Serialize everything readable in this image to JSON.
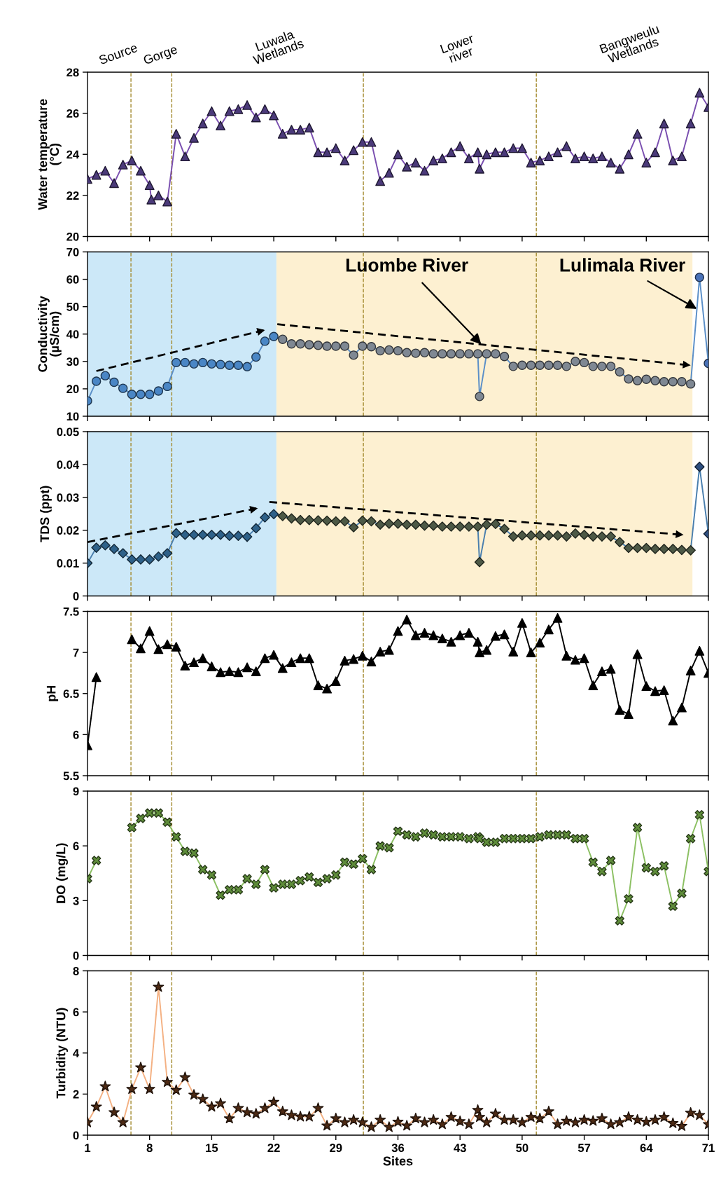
{
  "chart_data": [
    {
      "type": "line",
      "ylabel": "Water temperature\n(°C)",
      "series": [
        {
          "color": "#7a4fb0",
          "marker": "triangle",
          "x": [
            1,
            2,
            3,
            4,
            5,
            6,
            7,
            8,
            8.2,
            9,
            10,
            11,
            12,
            13,
            14,
            15,
            16,
            17,
            18,
            19,
            20,
            21,
            22,
            23,
            24,
            25,
            26,
            27,
            28,
            29,
            30,
            31,
            32,
            33,
            34,
            35,
            36,
            37,
            38,
            39,
            40,
            41,
            42,
            43,
            44,
            45,
            45.2,
            46,
            47,
            48,
            49,
            50,
            51,
            52,
            53,
            54,
            55,
            56,
            57,
            58,
            59,
            60,
            61,
            62,
            63,
            64,
            65,
            66,
            67,
            68,
            69,
            70,
            71
          ],
          "colors": [
            "#4b3a7a",
            "#4b3a7a",
            "#4b3a7a",
            "#4b3a7a",
            "#4b3a7a",
            "#4b3a7a",
            "#4b3a7a",
            "#4b3a7a",
            "#4b3a7a",
            "#4b3a7a",
            "#4b3a7a",
            "#4b3a7a",
            "#4b3a7a",
            "#4b3a7a",
            "#4b3a7a",
            "#4b3a7a",
            "#4b3a7a",
            "#4b3a7a",
            "#4b3a7a",
            "#4b3a7a",
            "#4b3a7a",
            "#4b3a7a",
            "#4b3a7a",
            "#4b3a7a",
            "#4b3a7a",
            "#4b3a7a",
            "#4b3a7a",
            "#4b3a7a",
            "#4b3a7a",
            "#4b3a7a",
            "#4b3a7a",
            "#4b3a7a",
            "#4b3a7a",
            "#4b3a7a",
            "#4b3a7a",
            "#4b3a7a",
            "#4b3a7a",
            "#4b3a7a",
            "#4b3a7a",
            "#4b3a7a",
            "#4b3a7a",
            "#4b3a7a",
            "#4b3a7a",
            "#4b3a7a",
            "#4b3a7a",
            "#4b3a7a",
            "#4b3a7a",
            "#4b3a7a",
            "#4b3a7a",
            "#4b3a7a",
            "#4b3a7a",
            "#4b3a7a",
            "#4b3a7a",
            "#4b3a7a",
            "#4b3a7a",
            "#4b3a7a",
            "#4b3a7a",
            "#4b3a7a",
            "#4b3a7a",
            "#4b3a7a",
            "#4b3a7a",
            "#4b3a7a",
            "#4b3a7a",
            "#4b3a7a",
            "#4b3a7a",
            "#4b3a7a",
            "#4b3a7a",
            "#4b3a7a",
            "#4b3a7a",
            "#4b3a7a",
            "#4b3a7a",
            "#4b3a7a",
            "#4b3a7a"
          ],
          "values": [
            22.8,
            23.0,
            23.2,
            22.6,
            23.5,
            23.7,
            23.2,
            22.5,
            21.8,
            22.0,
            21.7,
            25.0,
            23.9,
            24.8,
            25.5,
            26.1,
            25.4,
            26.1,
            26.2,
            26.4,
            25.8,
            26.2,
            25.9,
            25.0,
            25.2,
            25.2,
            25.3,
            24.1,
            24.1,
            24.3,
            23.7,
            24.2,
            24.6,
            24.6,
            22.7,
            23.1,
            24.0,
            23.4,
            23.6,
            23.2,
            23.7,
            23.8,
            24.1,
            24.4,
            23.8,
            24.1,
            23.3,
            24.0,
            24.1,
            24.1,
            24.3,
            24.3,
            23.6,
            23.7,
            23.9,
            24.1,
            24.4,
            23.8,
            23.9,
            23.8,
            23.9,
            23.6,
            23.3,
            24.0,
            25.0,
            23.6,
            24.1,
            25.5,
            23.7,
            23.9,
            25.5,
            27.0,
            26.3
          ]
        }
      ],
      "xlim": [
        1,
        71
      ],
      "xticks": [
        1,
        8,
        15,
        22,
        29,
        36,
        43,
        50,
        57,
        64,
        71
      ],
      "ylim": [
        20,
        28
      ],
      "yticks": [
        20,
        22,
        24,
        26,
        28
      ],
      "tick_labels": "y",
      "ref_lines": [
        {
          "axis": "x",
          "value": 5.9,
          "color": "#a38a2e",
          "line_style": "dashed"
        },
        {
          "axis": "x",
          "value": 10.5,
          "color": "#a38a2e",
          "line_style": "dashed"
        },
        {
          "axis": "x",
          "value": 32.1,
          "color": "#a38a2e",
          "line_style": "dashed"
        },
        {
          "axis": "x",
          "value": 51.6,
          "color": "#a38a2e",
          "line_style": "dashed"
        }
      ],
      "annotations": [
        "Source",
        "Gorge",
        "Luwala\nWetlands",
        "Lower\nriver",
        "Bangweulu\nWetlands"
      ]
    },
    {
      "type": "line",
      "ylabel": "Conductivity\n(µS/cm)",
      "series": [
        {
          "color": "#5b8fc8",
          "marker": "circle",
          "x": [
            1,
            2,
            3,
            4,
            5,
            6,
            7,
            8,
            9,
            10,
            11,
            12,
            13,
            14,
            15,
            16,
            17,
            18,
            19,
            20,
            21,
            22,
            23,
            24,
            25,
            26,
            27,
            28,
            29,
            30,
            31,
            32,
            33,
            34,
            35,
            36,
            37,
            38,
            39,
            40,
            41,
            42,
            43,
            44,
            45,
            45.2,
            46,
            47,
            48,
            49,
            50,
            51,
            52,
            53,
            54,
            55,
            56,
            57,
            58,
            59,
            60,
            61,
            62,
            63,
            64,
            65,
            66,
            67,
            68,
            69,
            70,
            71
          ],
          "colors": [
            "#4a86c5",
            "#4a86c5",
            "#4a86c5",
            "#4a86c5",
            "#4a86c5",
            "#4a86c5",
            "#4a86c5",
            "#4a86c5",
            "#4a86c5",
            "#4a86c5",
            "#4a86c5",
            "#4a86c5",
            "#4a86c5",
            "#4a86c5",
            "#4a86c5",
            "#4a86c5",
            "#4a86c5",
            "#4a86c5",
            "#4a86c5",
            "#4a86c5",
            "#4a86c5",
            "#4a86c5",
            "#7f8893",
            "#7f8893",
            "#7f8893",
            "#7f8893",
            "#7f8893",
            "#7f8893",
            "#7f8893",
            "#7f8893",
            "#7f8893",
            "#7f8893",
            "#7f8893",
            "#7f8893",
            "#7f8893",
            "#7f8893",
            "#7f8893",
            "#7f8893",
            "#7f8893",
            "#7f8893",
            "#7f8893",
            "#7f8893",
            "#7f8893",
            "#7f8893",
            "#7f8893",
            "#7f8893",
            "#7f8893",
            "#7f8893",
            "#7f8893",
            "#7f8893",
            "#7f8893",
            "#7f8893",
            "#7f8893",
            "#7f8893",
            "#7f8893",
            "#7f8893",
            "#7f8893",
            "#7f8893",
            "#7f8893",
            "#7f8893",
            "#7f8893",
            "#7f8893",
            "#7f8893",
            "#7f8893",
            "#7f8893",
            "#7f8893",
            "#7f8893",
            "#7f8893",
            "#7f8893",
            "#7f8893",
            "#4a72b8",
            "#4a72b8"
          ],
          "values": [
            15.6,
            22.8,
            24.8,
            22.4,
            20.2,
            18.0,
            18.0,
            18.0,
            19.2,
            20.9,
            29.6,
            29.6,
            29.1,
            29.6,
            29.1,
            28.9,
            28.6,
            28.6,
            28.1,
            31.6,
            37.4,
            39.1,
            38.1,
            36.4,
            36.4,
            36.1,
            35.9,
            35.6,
            35.6,
            35.6,
            32.3,
            35.6,
            35.4,
            33.9,
            34.2,
            33.9,
            33.2,
            33.0,
            33.2,
            32.8,
            32.8,
            32.8,
            32.8,
            32.8,
            32.8,
            17.2,
            32.8,
            32.8,
            31.8,
            28.2,
            28.6,
            28.6,
            28.6,
            28.6,
            28.6,
            28.2,
            30.0,
            29.6,
            28.2,
            28.2,
            28.2,
            26.2,
            23.6,
            23.0,
            23.5,
            23.0,
            22.6,
            22.6,
            22.6,
            21.8,
            60.7,
            29.3
          ]
        },
        {
          "type": "line",
          "x": [
            2,
            21
          ],
          "values": [
            26.5,
            41.5
          ],
          "color": "#000000",
          "marker": "none",
          "line_style": "dashed"
        },
        {
          "type": "line",
          "x": [
            22.4,
            69
          ],
          "values": [
            43.6,
            28.6
          ],
          "color": "#000000",
          "marker": "none",
          "line_style": "dashed"
        }
      ],
      "xlim": [
        1,
        71
      ],
      "xticks": [
        1,
        8,
        15,
        22,
        29,
        36,
        43,
        50,
        57,
        64,
        71
      ],
      "ylim": [
        10,
        70
      ],
      "yticks": [
        10,
        20,
        30,
        40,
        50,
        60,
        70
      ],
      "tick_labels": "y",
      "bands": [
        {
          "axis": "x",
          "from": 1,
          "to": 22.3,
          "color": "#cce8f8"
        },
        {
          "axis": "x",
          "from": 22.3,
          "to": 69.2,
          "color": "#fdf0d1"
        }
      ],
      "ref_lines": [
        {
          "axis": "x",
          "value": 5.9,
          "color": "#a38a2e",
          "line_style": "dashed"
        },
        {
          "axis": "x",
          "value": 10.5,
          "color": "#a38a2e",
          "line_style": "dashed"
        },
        {
          "axis": "x",
          "value": 32.1,
          "color": "#a38a2e",
          "line_style": "dashed"
        },
        {
          "axis": "x",
          "value": 51.6,
          "color": "#a38a2e",
          "line_style": "dashed"
        }
      ],
      "annotations": [
        {
          "text": "Luombe River",
          "x": 45.4,
          "y": 36.2
        },
        {
          "text": "Lulimala River",
          "x": 69.7,
          "y": 49.2
        }
      ]
    },
    {
      "type": "line",
      "ylabel": "TDS (ppt)",
      "series": [
        {
          "color": "#4a7fae",
          "marker": "diamond",
          "x": [
            1,
            2,
            3,
            4,
            5,
            6,
            7,
            8,
            9,
            10,
            11,
            12,
            13,
            14,
            15,
            16,
            17,
            18,
            19,
            20,
            21,
            22,
            23,
            24,
            25,
            26,
            27,
            28,
            29,
            30,
            31,
            32,
            33,
            34,
            35,
            36,
            37,
            38,
            39,
            40,
            41,
            42,
            43,
            44,
            45,
            45.2,
            46,
            47,
            48,
            49,
            50,
            51,
            52,
            53,
            54,
            55,
            56,
            57,
            58,
            59,
            60,
            61,
            62,
            63,
            64,
            65,
            66,
            67,
            68,
            69,
            70,
            71
          ],
          "colors": [
            "#2e6189",
            "#2e6189",
            "#2e6189",
            "#2e6189",
            "#2e6189",
            "#2e6189",
            "#2e6189",
            "#2e6189",
            "#2e6189",
            "#2e6189",
            "#2e6189",
            "#2e6189",
            "#2e6189",
            "#2e6189",
            "#2e6189",
            "#2e6189",
            "#2e6189",
            "#2e6189",
            "#2e6189",
            "#2e6189",
            "#2e6189",
            "#2e6189",
            "#4d5946",
            "#4d5946",
            "#4d5946",
            "#4d5946",
            "#4d5946",
            "#4d5946",
            "#4d5946",
            "#4d5946",
            "#4d5946",
            "#4d5946",
            "#4d5946",
            "#4d5946",
            "#4d5946",
            "#4d5946",
            "#4d5946",
            "#4d5946",
            "#4d5946",
            "#4d5946",
            "#4d5946",
            "#4d5946",
            "#4d5946",
            "#4d5946",
            "#4d5946",
            "#4d5946",
            "#4d5946",
            "#4d5946",
            "#4d5946",
            "#4d5946",
            "#4d5946",
            "#4d5946",
            "#4d5946",
            "#4d5946",
            "#4d5946",
            "#4d5946",
            "#4d5946",
            "#4d5946",
            "#4d5946",
            "#4d5946",
            "#4d5946",
            "#4d5946",
            "#4d5946",
            "#4d5946",
            "#4d5946",
            "#4d5946",
            "#4d5946",
            "#4d5946",
            "#4d5946",
            "#4d5946",
            "#2e4f80",
            "#2e4f80"
          ],
          "values": [
            0.01,
            0.0147,
            0.0154,
            0.0143,
            0.013,
            0.0111,
            0.0111,
            0.0111,
            0.012,
            0.013,
            0.0191,
            0.0186,
            0.0186,
            0.0186,
            0.0186,
            0.0186,
            0.0183,
            0.0183,
            0.018,
            0.0206,
            0.0239,
            0.0249,
            0.0243,
            0.0236,
            0.0231,
            0.0231,
            0.023,
            0.0229,
            0.0227,
            0.0227,
            0.0209,
            0.0229,
            0.0227,
            0.0217,
            0.022,
            0.022,
            0.0217,
            0.0217,
            0.0214,
            0.0214,
            0.0211,
            0.0211,
            0.0211,
            0.0211,
            0.0211,
            0.0103,
            0.0217,
            0.0219,
            0.0204,
            0.0181,
            0.0184,
            0.0184,
            0.0184,
            0.0184,
            0.0184,
            0.0181,
            0.019,
            0.0186,
            0.0181,
            0.0181,
            0.0181,
            0.0164,
            0.0146,
            0.0146,
            0.0146,
            0.0143,
            0.0143,
            0.0143,
            0.014,
            0.0139,
            0.0393,
            0.0189
          ]
        },
        {
          "type": "line",
          "x": [
            1,
            20.2
          ],
          "values": [
            0.0164,
            0.0267
          ],
          "color": "#000000",
          "marker": "none",
          "line_style": "dashed"
        },
        {
          "type": "line",
          "x": [
            21.5,
            68.2
          ],
          "values": [
            0.0286,
            0.0186
          ],
          "color": "#000000",
          "marker": "none",
          "line_style": "dashed"
        }
      ],
      "xlim": [
        1,
        71
      ],
      "xticks": [
        1,
        8,
        15,
        22,
        29,
        36,
        43,
        50,
        57,
        64,
        71
      ],
      "ylim": [
        0,
        0.05
      ],
      "yticks": [
        0,
        0.01,
        0.02,
        0.03,
        0.04,
        0.05
      ],
      "tick_labels": "y",
      "bands": [
        {
          "axis": "x",
          "from": 1,
          "to": 22.3,
          "color": "#cce8f8"
        },
        {
          "axis": "x",
          "from": 22.3,
          "to": 69.2,
          "color": "#fdf0d1"
        }
      ],
      "ref_lines": [
        {
          "axis": "x",
          "value": 5.9,
          "color": "#a38a2e",
          "line_style": "dashed"
        },
        {
          "axis": "x",
          "value": 10.5,
          "color": "#a38a2e",
          "line_style": "dashed"
        },
        {
          "axis": "x",
          "value": 32.1,
          "color": "#a38a2e",
          "line_style": "dashed"
        },
        {
          "axis": "x",
          "value": 51.6,
          "color": "#a38a2e",
          "line_style": "dashed"
        }
      ]
    },
    {
      "type": "line",
      "ylabel": "pH",
      "series": [
        {
          "color": "#000000",
          "marker": "triangle",
          "x": [
            1,
            2,
            3,
            4,
            5,
            6,
            7,
            8,
            9,
            10,
            11,
            12,
            13,
            14,
            15,
            16,
            17,
            18,
            19,
            20,
            21,
            22,
            23,
            24,
            25,
            26,
            27,
            28,
            29,
            30,
            31,
            32,
            33,
            34,
            35,
            36,
            37,
            38,
            39,
            40,
            41,
            42,
            43,
            44,
            45,
            45.2,
            46,
            47,
            48,
            49,
            50,
            51,
            52,
            53,
            54,
            55,
            56,
            57,
            58,
            59,
            60,
            61,
            62,
            63,
            64,
            65,
            66,
            67,
            68,
            69,
            70,
            71
          ],
          "values": [
            5.87,
            6.7,
            null,
            null,
            null,
            7.16,
            7.05,
            7.26,
            7.04,
            7.1,
            7.07,
            6.84,
            6.88,
            6.93,
            6.83,
            6.76,
            6.77,
            6.76,
            6.82,
            6.77,
            6.93,
            6.97,
            6.81,
            6.88,
            6.93,
            6.93,
            6.6,
            6.56,
            6.65,
            6.9,
            6.92,
            6.96,
            6.89,
            7.01,
            7.03,
            7.26,
            7.4,
            7.21,
            7.24,
            7.21,
            7.17,
            7.13,
            7.21,
            7.24,
            7.13,
            7.0,
            7.03,
            7.2,
            7.22,
            7.01,
            7.36,
            7.0,
            7.12,
            7.28,
            7.42,
            6.96,
            6.91,
            6.93,
            6.6,
            6.77,
            6.8,
            6.3,
            6.25,
            6.98,
            6.59,
            6.53,
            6.54,
            6.17,
            6.33,
            6.78,
            7.02,
            6.75
          ]
        }
      ],
      "xlim": [
        1,
        71
      ],
      "xticks": [
        1,
        8,
        15,
        22,
        29,
        36,
        43,
        50,
        57,
        64,
        71
      ],
      "ylim": [
        5.5,
        7.5
      ],
      "yticks": [
        5.5,
        6,
        6.5,
        7,
        7.5
      ],
      "tick_labels": "y",
      "ref_lines": [
        {
          "axis": "x",
          "value": 5.9,
          "color": "#a38a2e",
          "line_style": "dashed"
        },
        {
          "axis": "x",
          "value": 10.5,
          "color": "#a38a2e",
          "line_style": "dashed"
        },
        {
          "axis": "x",
          "value": 32.1,
          "color": "#a38a2e",
          "line_style": "dashed"
        },
        {
          "axis": "x",
          "value": 51.6,
          "color": "#a38a2e",
          "line_style": "dashed"
        }
      ]
    },
    {
      "type": "line",
      "ylabel": "DO (mg/L)",
      "series": [
        {
          "color": "#8cc063",
          "marker": "cross",
          "x": [
            1,
            2,
            3,
            4,
            5,
            6,
            7,
            8,
            9,
            10,
            11,
            12,
            13,
            14,
            15,
            16,
            17,
            18,
            19,
            20,
            21,
            22,
            23,
            24,
            25,
            26,
            27,
            28,
            29,
            30,
            31,
            32,
            33,
            34,
            35,
            36,
            37,
            38,
            39,
            40,
            41,
            42,
            43,
            44,
            45,
            45.2,
            46,
            47,
            48,
            49,
            50,
            51,
            52,
            53,
            54,
            55,
            56,
            57,
            58,
            59,
            60,
            61,
            62,
            63,
            64,
            65,
            66,
            67,
            68,
            69,
            70,
            71
          ],
          "colors": [
            "#5e8c3a",
            "#5e8c3a",
            "#5e8c3a",
            "#5e8c3a",
            "#5e8c3a",
            "#5e8c3a",
            "#5e8c3a",
            "#5e8c3a",
            "#5e8c3a",
            "#5e8c3a",
            "#5e8c3a",
            "#5e8c3a",
            "#5e8c3a",
            "#5e8c3a",
            "#5e8c3a",
            "#5e8c3a",
            "#5e8c3a",
            "#5e8c3a",
            "#5e8c3a",
            "#5e8c3a",
            "#5e8c3a",
            "#5e8c3a",
            "#5e8c3a",
            "#5e8c3a",
            "#5e8c3a",
            "#5e8c3a",
            "#5e8c3a",
            "#5e8c3a",
            "#5e8c3a",
            "#5e8c3a",
            "#5e8c3a",
            "#5e8c3a",
            "#5e8c3a",
            "#5e8c3a",
            "#5e8c3a",
            "#5e8c3a",
            "#5e8c3a",
            "#5e8c3a",
            "#5e8c3a",
            "#5e8c3a",
            "#5e8c3a",
            "#5e8c3a",
            "#5e8c3a",
            "#5e8c3a",
            "#5e8c3a",
            "#5e8c3a",
            "#5e8c3a",
            "#5e8c3a",
            "#5e8c3a",
            "#5e8c3a",
            "#5e8c3a",
            "#5e8c3a",
            "#5e8c3a",
            "#5e8c3a",
            "#5e8c3a",
            "#5e8c3a",
            "#5e8c3a",
            "#5e8c3a",
            "#5e8c3a",
            "#5e8c3a",
            "#5e8c3a",
            "#5e8c3a",
            "#5e8c3a",
            "#5e8c3a",
            "#5e8c3a",
            "#5e8c3a",
            "#5e8c3a",
            "#5e8c3a",
            "#5e8c3a",
            "#5e8c3a",
            "#5e8c3a",
            "#5e8c3a"
          ],
          "values": [
            4.2,
            5.2,
            null,
            null,
            null,
            7.0,
            7.5,
            7.8,
            7.8,
            7.3,
            6.5,
            5.7,
            5.6,
            4.7,
            4.4,
            3.3,
            3.6,
            3.6,
            4.2,
            3.9,
            4.7,
            3.7,
            3.9,
            3.9,
            4.1,
            4.3,
            4.0,
            4.2,
            4.4,
            5.1,
            5.0,
            5.3,
            4.7,
            6.0,
            5.9,
            6.8,
            6.6,
            6.5,
            6.7,
            6.6,
            6.5,
            6.5,
            6.5,
            6.4,
            6.5,
            6.4,
            6.2,
            6.2,
            6.4,
            6.4,
            6.4,
            6.4,
            6.5,
            6.6,
            6.6,
            6.6,
            6.4,
            6.4,
            5.1,
            4.6,
            5.2,
            1.9,
            3.1,
            7.0,
            4.8,
            4.6,
            4.9,
            2.7,
            3.4,
            6.4,
            7.7,
            4.6
          ]
        }
      ],
      "xlim": [
        1,
        71
      ],
      "xticks": [
        1,
        8,
        15,
        22,
        29,
        36,
        43,
        50,
        57,
        64,
        71
      ],
      "ylim": [
        0,
        9
      ],
      "yticks": [
        0,
        3,
        6,
        9
      ],
      "tick_labels": "y",
      "ref_lines": [
        {
          "axis": "x",
          "value": 5.9,
          "color": "#a38a2e",
          "line_style": "dashed"
        },
        {
          "axis": "x",
          "value": 10.5,
          "color": "#a38a2e",
          "line_style": "dashed"
        },
        {
          "axis": "x",
          "value": 32.1,
          "color": "#a38a2e",
          "line_style": "dashed"
        },
        {
          "axis": "x",
          "value": 51.6,
          "color": "#a38a2e",
          "line_style": "dashed"
        }
      ]
    },
    {
      "type": "line",
      "ylabel": "Turbidity (NTU)",
      "xlabel": "Sites",
      "series": [
        {
          "color": "#f4b183",
          "marker": "star",
          "x": [
            1,
            2,
            3,
            4,
            5,
            6,
            7,
            8,
            9,
            10,
            11,
            12,
            13,
            14,
            15,
            16,
            17,
            18,
            19,
            20,
            21,
            22,
            23,
            24,
            25,
            26,
            27,
            28,
            29,
            30,
            31,
            32,
            33,
            34,
            35,
            36,
            37,
            38,
            39,
            40,
            41,
            42,
            43,
            44,
            45,
            45.2,
            46,
            47,
            48,
            49,
            50,
            51,
            52,
            53,
            54,
            55,
            56,
            57,
            58,
            59,
            60,
            61,
            62,
            63,
            64,
            65,
            66,
            67,
            68,
            69,
            70,
            71
          ],
          "colors": [
            "#4d2a14",
            "#4d2a14",
            "#4d2a14",
            "#4d2a14",
            "#4d2a14",
            "#4d2a14",
            "#4d2a14",
            "#4d2a14",
            "#4d2a14",
            "#4d2a14",
            "#4d2a14",
            "#4d2a14",
            "#4d2a14",
            "#4d2a14",
            "#4d2a14",
            "#4d2a14",
            "#4d2a14",
            "#4d2a14",
            "#4d2a14",
            "#4d2a14",
            "#4d2a14",
            "#4d2a14",
            "#4d2a14",
            "#4d2a14",
            "#4d2a14",
            "#4d2a14",
            "#4d2a14",
            "#4d2a14",
            "#4d2a14",
            "#4d2a14",
            "#4d2a14",
            "#4d2a14",
            "#4d2a14",
            "#4d2a14",
            "#4d2a14",
            "#4d2a14",
            "#4d2a14",
            "#4d2a14",
            "#4d2a14",
            "#4d2a14",
            "#4d2a14",
            "#4d2a14",
            "#4d2a14",
            "#4d2a14",
            "#4d2a14",
            "#4d2a14",
            "#4d2a14",
            "#4d2a14",
            "#4d2a14",
            "#4d2a14",
            "#4d2a14",
            "#4d2a14",
            "#4d2a14",
            "#4d2a14",
            "#4d2a14",
            "#4d2a14",
            "#4d2a14",
            "#4d2a14",
            "#4d2a14",
            "#4d2a14",
            "#4d2a14",
            "#4d2a14",
            "#4d2a14",
            "#4d2a14",
            "#4d2a14",
            "#4d2a14",
            "#4d2a14",
            "#4d2a14",
            "#4d2a14",
            "#4d2a14",
            "#4d2a14",
            "#4d2a14"
          ],
          "values": [
            0.62,
            1.38,
            2.37,
            1.11,
            0.62,
            2.24,
            3.29,
            2.24,
            7.21,
            2.58,
            2.19,
            2.81,
            1.96,
            1.75,
            1.38,
            1.54,
            0.81,
            1.31,
            1.11,
            1.04,
            1.31,
            1.61,
            1.15,
            0.97,
            0.9,
            0.9,
            1.31,
            0.46,
            0.81,
            0.62,
            0.74,
            0.62,
            0.39,
            0.74,
            0.39,
            0.65,
            0.46,
            0.81,
            0.62,
            0.74,
            0.53,
            0.88,
            0.67,
            0.53,
            1.22,
            0.88,
            0.62,
            1.04,
            0.74,
            0.74,
            0.62,
            0.88,
            0.81,
            1.15,
            0.53,
            0.69,
            0.62,
            0.74,
            0.69,
            0.81,
            0.53,
            0.62,
            0.88,
            0.74,
            0.65,
            0.74,
            0.88,
            0.58,
            0.44,
            1.08,
            0.97,
            0.53
          ]
        }
      ],
      "xlim": [
        1,
        71
      ],
      "xticks": [
        1,
        8,
        15,
        22,
        29,
        36,
        43,
        50,
        57,
        64,
        71
      ],
      "ylim": [
        0,
        8
      ],
      "yticks": [
        0,
        2,
        4,
        6,
        8
      ],
      "ref_lines": [
        {
          "axis": "x",
          "value": 5.9,
          "color": "#a38a2e",
          "line_style": "dashed"
        },
        {
          "axis": "x",
          "value": 10.5,
          "color": "#a38a2e",
          "line_style": "dashed"
        },
        {
          "axis": "x",
          "value": 32.1,
          "color": "#a38a2e",
          "line_style": "dashed"
        },
        {
          "axis": "x",
          "value": 51.6,
          "color": "#a38a2e",
          "line_style": "dashed"
        }
      ]
    }
  ]
}
